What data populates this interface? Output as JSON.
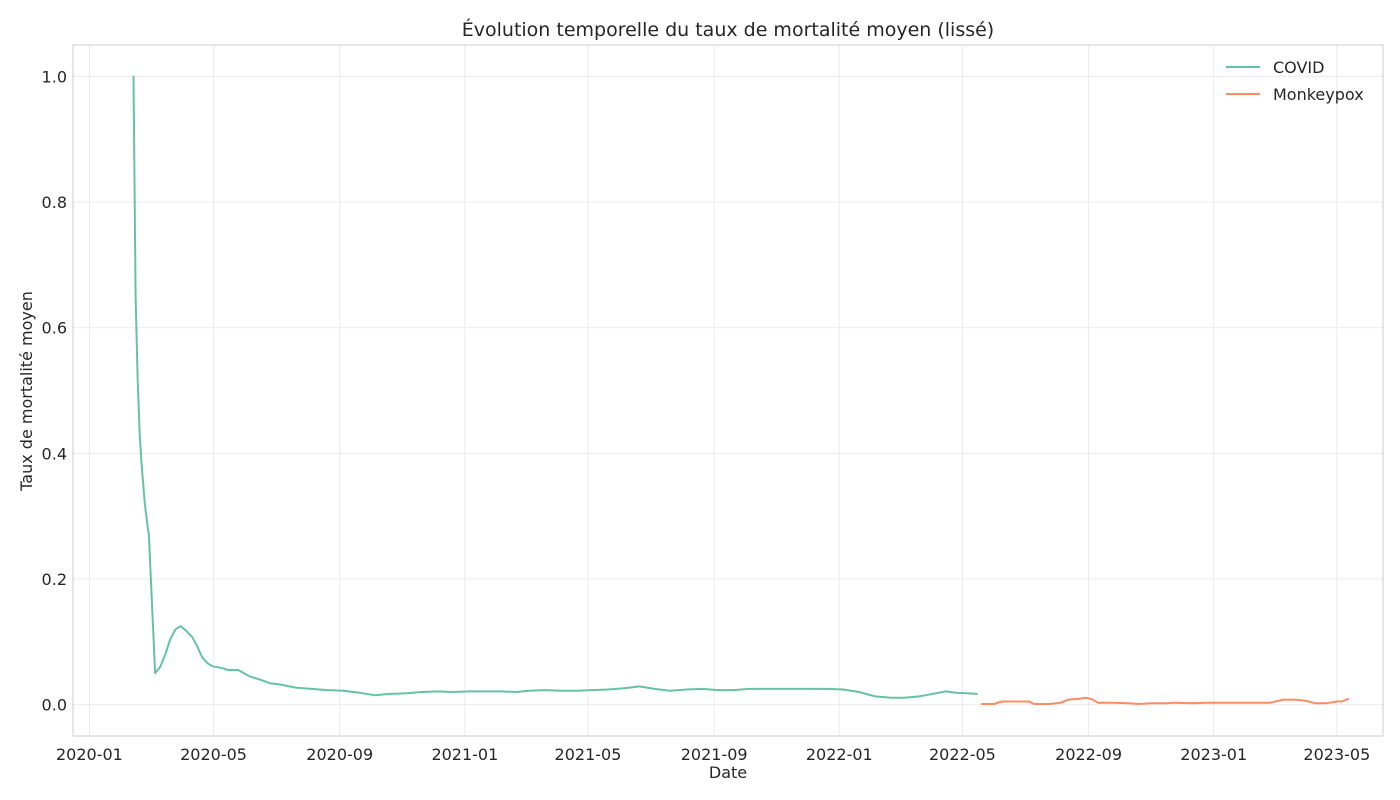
{
  "chart_data": {
    "type": "line",
    "title": "Évolution temporelle du taux de mortalité moyen (lissé)",
    "xlabel": "Date",
    "ylabel": "Taux de mortalité moyen",
    "x_range": [
      "2019-12-16",
      "2023-06-15"
    ],
    "ylim": [
      -0.05,
      1.05
    ],
    "x_ticks": [
      "2020-01",
      "2020-05",
      "2020-09",
      "2021-01",
      "2021-05",
      "2021-09",
      "2022-01",
      "2022-05",
      "2022-09",
      "2023-01",
      "2023-05"
    ],
    "y_ticks": [
      "0.0",
      "0.2",
      "0.4",
      "0.6",
      "0.8",
      "1.0"
    ],
    "grid": true,
    "legend": "top-right",
    "series": [
      {
        "name": "COVID",
        "color": "#66c2a5",
        "points": [
          [
            "2020-02-13",
            1.0
          ],
          [
            "2020-02-15",
            0.65
          ],
          [
            "2020-02-17",
            0.52
          ],
          [
            "2020-02-19",
            0.43
          ],
          [
            "2020-02-21",
            0.38
          ],
          [
            "2020-02-24",
            0.32
          ],
          [
            "2020-02-27",
            0.28
          ],
          [
            "2020-02-28",
            0.27
          ],
          [
            "2020-03-05",
            0.05
          ],
          [
            "2020-03-10",
            0.06
          ],
          [
            "2020-03-15",
            0.08
          ],
          [
            "2020-03-20",
            0.105
          ],
          [
            "2020-03-25",
            0.12
          ],
          [
            "2020-03-30",
            0.125
          ],
          [
            "2020-04-04",
            0.118
          ],
          [
            "2020-04-10",
            0.108
          ],
          [
            "2020-04-15",
            0.093
          ],
          [
            "2020-04-20",
            0.075
          ],
          [
            "2020-04-25",
            0.066
          ],
          [
            "2020-04-30",
            0.061
          ],
          [
            "2020-05-10",
            0.058
          ],
          [
            "2020-05-15",
            0.055
          ],
          [
            "2020-05-25",
            0.055
          ],
          [
            "2020-06-05",
            0.045
          ],
          [
            "2020-06-15",
            0.04
          ],
          [
            "2020-06-25",
            0.034
          ],
          [
            "2020-07-05",
            0.032
          ],
          [
            "2020-07-20",
            0.027
          ],
          [
            "2020-08-05",
            0.025
          ],
          [
            "2020-08-20",
            0.023
          ],
          [
            "2020-09-05",
            0.022
          ],
          [
            "2020-09-20",
            0.019
          ],
          [
            "2020-10-05",
            0.015
          ],
          [
            "2020-10-20",
            0.017
          ],
          [
            "2020-11-05",
            0.018
          ],
          [
            "2020-11-20",
            0.02
          ],
          [
            "2020-12-05",
            0.021
          ],
          [
            "2020-12-20",
            0.02
          ],
          [
            "2021-01-05",
            0.021
          ],
          [
            "2021-01-20",
            0.021
          ],
          [
            "2021-02-05",
            0.021
          ],
          [
            "2021-02-20",
            0.02
          ],
          [
            "2021-03-05",
            0.022
          ],
          [
            "2021-03-20",
            0.023
          ],
          [
            "2021-04-05",
            0.022
          ],
          [
            "2021-04-20",
            0.022
          ],
          [
            "2021-05-05",
            0.023
          ],
          [
            "2021-05-20",
            0.024
          ],
          [
            "2021-06-05",
            0.026
          ],
          [
            "2021-06-20",
            0.029
          ],
          [
            "2021-07-05",
            0.025
          ],
          [
            "2021-07-20",
            0.022
          ],
          [
            "2021-08-05",
            0.024
          ],
          [
            "2021-08-20",
            0.025
          ],
          [
            "2021-09-05",
            0.023
          ],
          [
            "2021-09-20",
            0.023
          ],
          [
            "2021-10-05",
            0.025
          ],
          [
            "2021-10-20",
            0.025
          ],
          [
            "2021-11-05",
            0.025
          ],
          [
            "2021-11-20",
            0.025
          ],
          [
            "2021-12-05",
            0.025
          ],
          [
            "2021-12-20",
            0.025
          ],
          [
            "2022-01-05",
            0.024
          ],
          [
            "2022-01-20",
            0.02
          ],
          [
            "2022-02-05",
            0.013
          ],
          [
            "2022-02-20",
            0.011
          ],
          [
            "2022-03-05",
            0.011
          ],
          [
            "2022-03-20",
            0.013
          ],
          [
            "2022-04-05",
            0.018
          ],
          [
            "2022-04-15",
            0.021
          ],
          [
            "2022-04-25",
            0.019
          ],
          [
            "2022-05-05",
            0.018
          ],
          [
            "2022-05-15",
            0.017
          ]
        ]
      },
      {
        "name": "Monkeypox",
        "color": "#fc8d62",
        "points": [
          [
            "2022-05-20",
            0.001
          ],
          [
            "2022-06-01",
            0.001
          ],
          [
            "2022-06-08",
            0.005
          ],
          [
            "2022-06-20",
            0.005
          ],
          [
            "2022-07-05",
            0.005
          ],
          [
            "2022-07-10",
            0.001
          ],
          [
            "2022-07-25",
            0.001
          ],
          [
            "2022-08-05",
            0.003
          ],
          [
            "2022-08-12",
            0.008
          ],
          [
            "2022-08-22",
            0.009
          ],
          [
            "2022-08-30",
            0.011
          ],
          [
            "2022-09-05",
            0.008
          ],
          [
            "2022-09-10",
            0.003
          ],
          [
            "2022-09-25",
            0.003
          ],
          [
            "2022-10-10",
            0.002
          ],
          [
            "2022-10-20",
            0.001
          ],
          [
            "2022-11-01",
            0.002
          ],
          [
            "2022-11-15",
            0.002
          ],
          [
            "2022-11-25",
            0.003
          ],
          [
            "2022-12-10",
            0.002
          ],
          [
            "2022-12-25",
            0.003
          ],
          [
            "2023-01-10",
            0.003
          ],
          [
            "2023-01-25",
            0.003
          ],
          [
            "2023-02-10",
            0.003
          ],
          [
            "2023-02-25",
            0.003
          ],
          [
            "2023-03-10",
            0.008
          ],
          [
            "2023-03-20",
            0.008
          ],
          [
            "2023-04-01",
            0.006
          ],
          [
            "2023-04-10",
            0.002
          ],
          [
            "2023-04-20",
            0.002
          ],
          [
            "2023-05-01",
            0.005
          ],
          [
            "2023-05-06",
            0.005
          ],
          [
            "2023-05-12",
            0.009
          ]
        ]
      }
    ]
  }
}
